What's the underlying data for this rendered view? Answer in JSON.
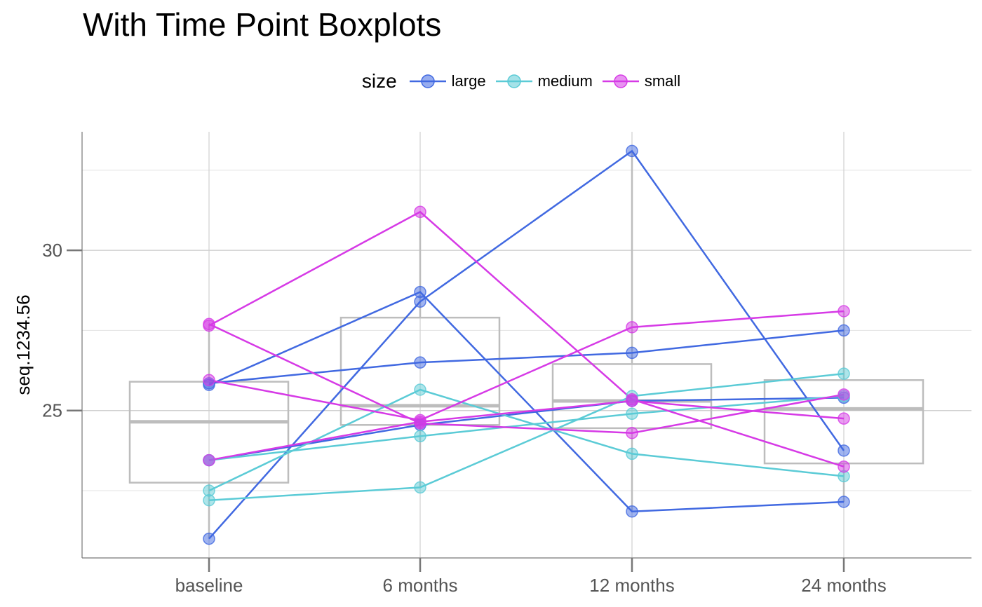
{
  "chart_data": {
    "type": "line",
    "title": "With Time Point Boxplots",
    "xlabel": "",
    "ylabel": "seq.1234.56",
    "categories": [
      "baseline",
      "6 months",
      "12 months",
      "24 months"
    ],
    "ylim": [
      20.4,
      33.7
    ],
    "yticks": [
      25,
      30
    ],
    "grid": true,
    "legend": {
      "title": "size",
      "position": "top",
      "entries": [
        "large",
        "medium",
        "small"
      ]
    },
    "colors": {
      "large": "#4169E1",
      "medium": "#5BCBD6",
      "small": "#D63AE6",
      "boxplot": "#BDBDBD",
      "axis": "#777777"
    },
    "boxplots": [
      {
        "category": "baseline",
        "q1": 22.75,
        "median": 24.65,
        "q3": 25.9,
        "whisker_low": 21.0,
        "whisker_high": 27.7
      },
      {
        "category": "6 months",
        "q1": 24.55,
        "median": 25.15,
        "q3": 27.9,
        "whisker_low": 22.6,
        "whisker_high": 31.2
      },
      {
        "category": "12 months",
        "q1": 24.45,
        "median": 25.3,
        "q3": 26.45,
        "whisker_low": 21.85,
        "whisker_high": 33.1
      },
      {
        "category": "24 months",
        "q1": 23.35,
        "median": 25.05,
        "q3": 25.95,
        "whisker_low": 22.15,
        "whisker_high": 28.1
      }
    ],
    "series": [
      {
        "group": "large",
        "values": [
          25.8,
          28.7,
          21.85,
          22.15
        ]
      },
      {
        "group": "large",
        "values": [
          25.85,
          26.5,
          26.8,
          27.5
        ]
      },
      {
        "group": "large",
        "values": [
          21.0,
          28.4,
          33.1,
          23.75
        ]
      },
      {
        "group": "large",
        "values": [
          23.45,
          24.55,
          25.3,
          25.4
        ]
      },
      {
        "group": "medium",
        "values": [
          22.5,
          25.65,
          23.65,
          22.95
        ]
      },
      {
        "group": "medium",
        "values": [
          22.2,
          22.6,
          25.45,
          26.15
        ]
      },
      {
        "group": "medium",
        "values": [
          23.45,
          24.2,
          24.9,
          25.45
        ]
      },
      {
        "group": "small",
        "values": [
          27.65,
          31.2,
          25.35,
          23.25
        ]
      },
      {
        "group": "small",
        "values": [
          27.7,
          24.6,
          24.3,
          25.5
        ]
      },
      {
        "group": "small",
        "values": [
          25.95,
          24.7,
          27.6,
          28.1
        ]
      },
      {
        "group": "small",
        "values": [
          23.45,
          24.65,
          25.3,
          24.75
        ]
      }
    ]
  }
}
